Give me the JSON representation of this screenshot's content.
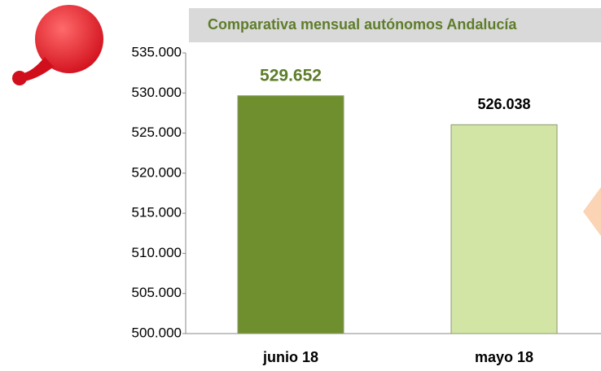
{
  "chart_data": {
    "type": "bar",
    "title": "Comparativa mensual autónomos Andalucía",
    "categories": [
      "junio 18",
      "mayo 18"
    ],
    "values": [
      529652,
      526038
    ],
    "value_labels": [
      "529.652",
      "526.038"
    ],
    "colors": [
      "#6f8f2e",
      "#d3e5a5"
    ],
    "value_label_colors": [
      "#5e7d2a",
      "#000000"
    ],
    "ylim": [
      500000,
      535000
    ],
    "yticks": [
      {
        "value": 500000,
        "label": "500.000"
      },
      {
        "value": 505000,
        "label": "505.000"
      },
      {
        "value": 510000,
        "label": "510.000"
      },
      {
        "value": 515000,
        "label": "515.000"
      },
      {
        "value": 520000,
        "label": "520.000"
      },
      {
        "value": 525000,
        "label": "525.000"
      },
      {
        "value": 530000,
        "label": "530.000"
      },
      {
        "value": 535000,
        "label": "535.000"
      }
    ],
    "grid": false
  }
}
